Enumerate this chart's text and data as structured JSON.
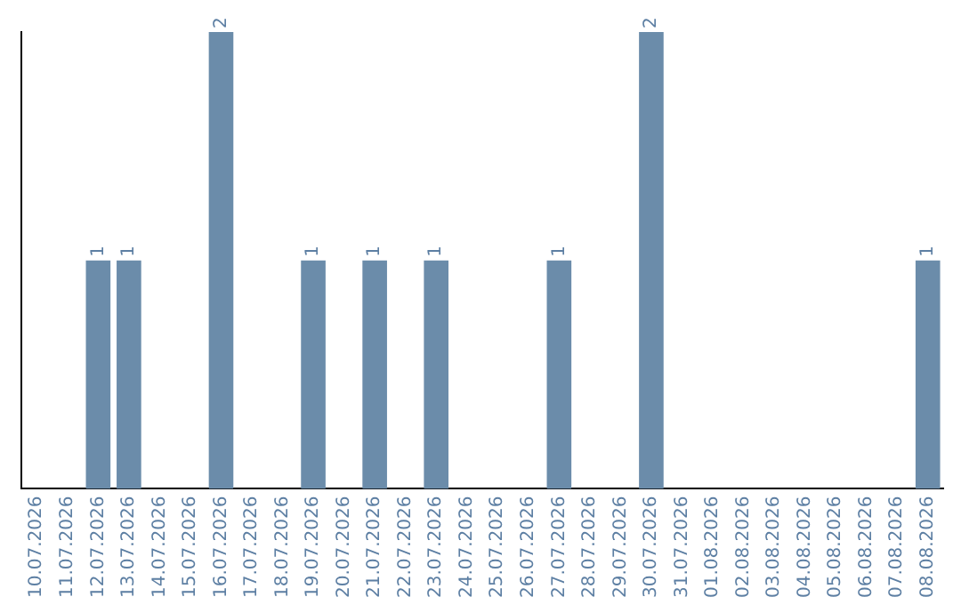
{
  "chart_data": {
    "type": "bar",
    "categories": [
      "10.07.2026",
      "11.07.2026",
      "12.07.2026",
      "13.07.2026",
      "14.07.2026",
      "15.07.2026",
      "16.07.2026",
      "17.07.2026",
      "18.07.2026",
      "19.07.2026",
      "20.07.2026",
      "21.07.2026",
      "22.07.2026",
      "23.07.2026",
      "24.07.2026",
      "25.07.2026",
      "26.07.2026",
      "27.07.2026",
      "28.07.2026",
      "29.07.2026",
      "30.07.2026",
      "31.07.2026",
      "01.08.2026",
      "02.08.2026",
      "03.08.2026",
      "04.08.2026",
      "05.08.2026",
      "06.08.2026",
      "07.08.2026",
      "08.08.2026"
    ],
    "values": [
      0,
      0,
      1,
      1,
      0,
      0,
      2,
      0,
      0,
      1,
      0,
      1,
      0,
      1,
      0,
      0,
      0,
      1,
      0,
      0,
      2,
      0,
      0,
      0,
      0,
      0,
      0,
      0,
      0,
      1
    ],
    "value_labels": [
      null,
      null,
      "1",
      "1",
      null,
      null,
      "2",
      null,
      null,
      "1",
      null,
      "1",
      null,
      "1",
      null,
      null,
      null,
      "1",
      null,
      null,
      "2",
      null,
      null,
      null,
      null,
      null,
      null,
      null,
      null,
      "1"
    ],
    "color": "#6b8caa",
    "grid": false,
    "legend": false,
    "tick_labels": "x"
  }
}
